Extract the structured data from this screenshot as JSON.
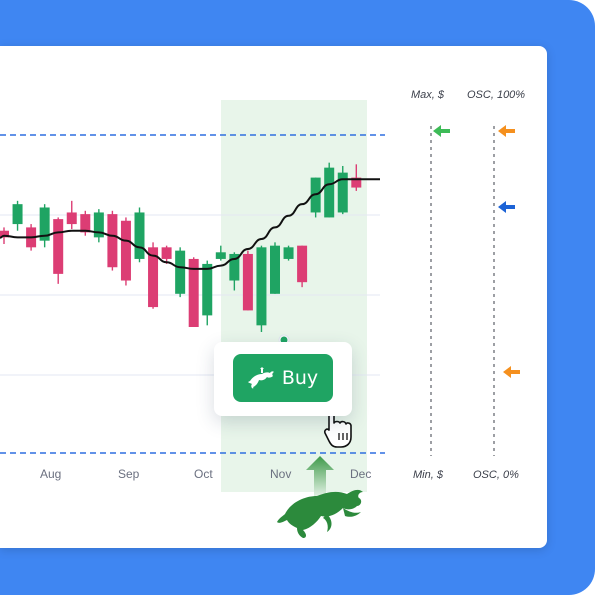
{
  "colors": {
    "background": "#3f86f2",
    "up_candle": "#1fa463",
    "down_candle": "#dc3d74",
    "highlight_zone": "#e8f5ea",
    "dashed_line": "#2f6fe0",
    "arrow_green": "#3dbb57",
    "arrow_orange": "#f5901e",
    "arrow_blue": "#1c63d6"
  },
  "axis": {
    "months": [
      "Aug",
      "Sep",
      "Oct",
      "Nov",
      "Dec"
    ]
  },
  "indicator_panel": {
    "price_max_label": "Max, $",
    "price_min_label": "Min, $",
    "osc_max_label": "OSC, 100%",
    "osc_min_label": "OSC, 0%",
    "arrows": [
      {
        "column": "price",
        "color": "green",
        "icon": "arrow-left-icon"
      },
      {
        "column": "osc",
        "color": "orange",
        "icon": "arrow-left-icon"
      },
      {
        "column": "osc",
        "color": "blue",
        "icon": "arrow-left-icon"
      },
      {
        "column": "osc",
        "color": "orange",
        "icon": "arrow-left-icon"
      }
    ]
  },
  "buy_button": {
    "label": "Buy",
    "icon": "bull-icon"
  },
  "decor": {
    "bull_icon": "bull-icon",
    "up_arrow_icon": "up-arrow-icon",
    "cursor_icon": "hand-cursor-icon"
  },
  "chart_data": {
    "type": "candlestick",
    "title": "",
    "xlabel": "",
    "ylabel": "",
    "x_ticks": [
      "Aug",
      "Sep",
      "Oct",
      "Nov",
      "Dec"
    ],
    "candles": [
      {
        "open": 58,
        "close": 54,
        "high": 60,
        "low": 50
      },
      {
        "open": 62,
        "close": 74,
        "high": 76,
        "low": 58
      },
      {
        "open": 60,
        "close": 48,
        "high": 62,
        "low": 46
      },
      {
        "open": 52,
        "close": 72,
        "high": 74,
        "low": 48
      },
      {
        "open": 65,
        "close": 32,
        "high": 66,
        "low": 26
      },
      {
        "open": 69,
        "close": 62,
        "high": 76,
        "low": 59
      },
      {
        "open": 68,
        "close": 57,
        "high": 70,
        "low": 55
      },
      {
        "open": 54,
        "close": 69,
        "high": 71,
        "low": 51
      },
      {
        "open": 68,
        "close": 36,
        "high": 70,
        "low": 34
      },
      {
        "open": 64,
        "close": 28,
        "high": 66,
        "low": 25
      },
      {
        "open": 41,
        "close": 69,
        "high": 72,
        "low": 39
      },
      {
        "open": 48,
        "close": 12,
        "high": 51,
        "low": 11
      },
      {
        "open": 48,
        "close": 41,
        "high": 49,
        "low": 38
      },
      {
        "open": 20,
        "close": 46,
        "high": 48,
        "low": 18
      },
      {
        "open": 41,
        "close": 0,
        "high": 42,
        "low": 0
      },
      {
        "open": 7,
        "close": 38,
        "high": 40,
        "low": 1
      },
      {
        "open": 41,
        "close": 45,
        "high": 49,
        "low": 40
      },
      {
        "open": 28,
        "close": 44,
        "high": 45,
        "low": 22
      },
      {
        "open": 44,
        "close": 10,
        "high": 46,
        "low": 10
      },
      {
        "open": 1,
        "close": 48,
        "high": 49,
        "low": -3
      },
      {
        "open": 20,
        "close": 49,
        "high": 51,
        "low": 20
      },
      {
        "open": 41,
        "close": 48,
        "high": 49,
        "low": 40
      },
      {
        "open": 49,
        "close": 27,
        "high": 49,
        "low": 24
      },
      {
        "open": 69,
        "close": 90,
        "high": 90,
        "low": 66
      },
      {
        "open": 66,
        "close": 96,
        "high": 99,
        "low": 66
      },
      {
        "open": 69,
        "close": 93,
        "high": 97,
        "low": 68
      },
      {
        "open": 90,
        "close": 84,
        "high": 98,
        "low": 82
      }
    ],
    "moving_average": [
      55,
      54,
      54,
      55,
      57,
      58,
      58,
      57,
      55,
      52,
      48,
      43,
      39,
      36,
      35,
      35,
      37,
      41,
      47,
      53,
      60,
      67,
      74,
      80,
      86,
      89,
      89
    ],
    "highlight_range": {
      "from_candle": 14,
      "to_candle": 26
    },
    "ylim": [
      0,
      100
    ]
  }
}
